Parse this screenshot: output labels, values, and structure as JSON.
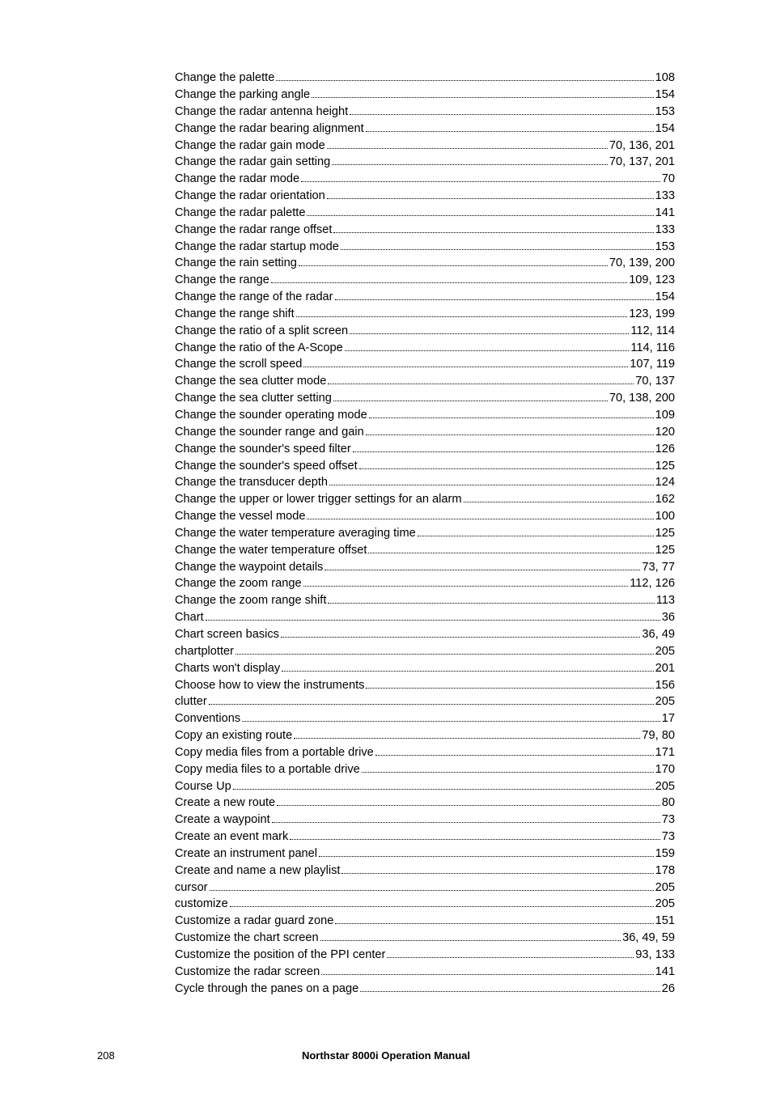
{
  "entries": [
    {
      "label": "Change the palette",
      "page": "108"
    },
    {
      "label": "Change the parking angle",
      "page": "154"
    },
    {
      "label": "Change the radar antenna height",
      "page": "153"
    },
    {
      "label": "Change the radar bearing alignment",
      "page": "154"
    },
    {
      "label": "Change the radar gain mode",
      "page": "70, 136, 201"
    },
    {
      "label": "Change the radar gain setting",
      "page": "70, 137, 201"
    },
    {
      "label": "Change the radar mode",
      "page": "70"
    },
    {
      "label": "Change the radar orientation",
      "page": "133"
    },
    {
      "label": "Change the radar palette",
      "page": "141"
    },
    {
      "label": "Change the radar range offset",
      "page": "133"
    },
    {
      "label": "Change the radar startup mode",
      "page": "153"
    },
    {
      "label": "Change the rain setting",
      "page": "70, 139, 200"
    },
    {
      "label": "Change the range",
      "page": "109, 123"
    },
    {
      "label": "Change the range of the radar",
      "page": "154"
    },
    {
      "label": "Change the range shift",
      "page": "123, 199"
    },
    {
      "label": "Change the ratio of a split screen",
      "page": "112, 114"
    },
    {
      "label": "Change the ratio of the A-Scope",
      "page": "114, 116"
    },
    {
      "label": "Change the scroll speed",
      "page": "107, 119"
    },
    {
      "label": "Change the sea clutter mode",
      "page": "70, 137"
    },
    {
      "label": "Change the sea clutter setting",
      "page": "70, 138, 200"
    },
    {
      "label": "Change the sounder operating mode",
      "page": "109"
    },
    {
      "label": "Change the sounder range and gain",
      "page": "120"
    },
    {
      "label": "Change the sounder's speed filter",
      "page": "126"
    },
    {
      "label": "Change the sounder's speed offset",
      "page": "125"
    },
    {
      "label": "Change the transducer depth",
      "page": "124"
    },
    {
      "label": "Change the upper or lower trigger settings for an alarm",
      "page": "162"
    },
    {
      "label": "Change the vessel mode",
      "page": "100"
    },
    {
      "label": "Change the water temperature averaging time",
      "page": "125"
    },
    {
      "label": "Change the water temperature offset",
      "page": "125"
    },
    {
      "label": "Change the waypoint details",
      "page": "73, 77"
    },
    {
      "label": "Change the zoom range",
      "page": "112, 126"
    },
    {
      "label": "Change the zoom range shift",
      "page": "113"
    },
    {
      "label": "Chart",
      "page": "36"
    },
    {
      "label": "Chart screen basics",
      "page": "36, 49"
    },
    {
      "label": "chartplotter",
      "page": "205"
    },
    {
      "label": "Charts won't display",
      "page": "201"
    },
    {
      "label": "Choose how to view the instruments",
      "page": "156"
    },
    {
      "label": "clutter",
      "page": "205"
    },
    {
      "label": "Conventions",
      "page": "17"
    },
    {
      "label": "Copy an existing route",
      "page": "79, 80"
    },
    {
      "label": "Copy media files from a portable drive",
      "page": "171"
    },
    {
      "label": "Copy media files to a portable drive",
      "page": "170"
    },
    {
      "label": "Course Up",
      "page": "205"
    },
    {
      "label": "Create a new route",
      "page": "80"
    },
    {
      "label": "Create a waypoint",
      "page": "73"
    },
    {
      "label": "Create an event mark",
      "page": "73"
    },
    {
      "label": "Create an instrument panel",
      "page": "159"
    },
    {
      "label": "Create and name a new playlist",
      "page": "178"
    },
    {
      "label": "cursor",
      "page": "205"
    },
    {
      "label": "customize",
      "page": "205"
    },
    {
      "label": "Customize a radar guard zone",
      "page": "151"
    },
    {
      "label": "Customize the chart screen",
      "page": "36, 49, 59"
    },
    {
      "label": "Customize the position of the PPI center",
      "page": "93, 133"
    },
    {
      "label": "Customize the radar screen",
      "page": "141"
    },
    {
      "label": "Cycle through the panes on a page",
      "page": "26"
    }
  ],
  "footer": {
    "page_number": "208",
    "manual_title": "Northstar 8000i Operation Manual"
  }
}
